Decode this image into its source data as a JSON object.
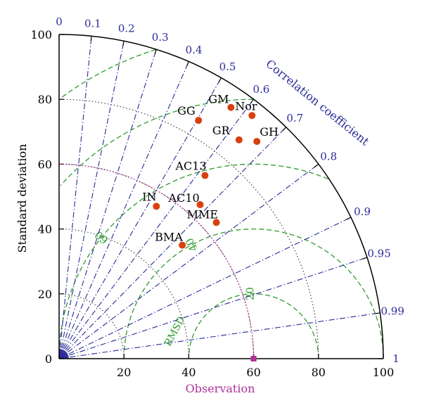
{
  "chart_data": {
    "type": "taylor",
    "xlabel": "Observation",
    "ylabel": "Standard deviation",
    "arc_label": "Correlation coefficient",
    "rmsd_label": "RMSD",
    "std_range": [
      0,
      100
    ],
    "std_ticks": [
      0,
      20,
      40,
      60,
      80,
      100
    ],
    "observation_std": 60,
    "correlation_ticks": [
      {
        "label": "0",
        "value": 0
      },
      {
        "label": "0.1",
        "value": 0.1
      },
      {
        "label": "0.2",
        "value": 0.2
      },
      {
        "label": "0.3",
        "value": 0.3
      },
      {
        "label": "0.4",
        "value": 0.4
      },
      {
        "label": "0.5",
        "value": 0.5
      },
      {
        "label": "0.6",
        "value": 0.6
      },
      {
        "label": "0.7",
        "value": 0.7
      },
      {
        "label": "0.8",
        "value": 0.8
      },
      {
        "label": "0.9",
        "value": 0.9
      },
      {
        "label": "0.95",
        "value": 0.95
      },
      {
        "label": "0.99",
        "value": 0.99
      },
      {
        "label": "1",
        "value": 1
      }
    ],
    "rmsd_contours": [
      20,
      40,
      60,
      80,
      100
    ],
    "std_contours": [
      20,
      40,
      60,
      80
    ],
    "points": [
      {
        "label": "GG",
        "x": 43,
        "y": 73.5
      },
      {
        "label": "GM",
        "x": 53,
        "y": 77.5
      },
      {
        "label": "Nor",
        "x": 59.5,
        "y": 75
      },
      {
        "label": "GR",
        "x": 55.5,
        "y": 67.5
      },
      {
        "label": "GH",
        "x": 61,
        "y": 67
      },
      {
        "label": "AC13",
        "x": 45,
        "y": 56.5
      },
      {
        "label": "IN",
        "x": 30,
        "y": 47
      },
      {
        "label": "AC10",
        "x": 43.5,
        "y": 47.5
      },
      {
        "label": "MME",
        "x": 48.5,
        "y": 42
      },
      {
        "label": "BMA",
        "x": 38,
        "y": 35
      }
    ],
    "colors": {
      "axis": "#000000",
      "correlation": "#2a2a9a",
      "rmsd": "#2e9a2e",
      "observation": "#b0309a",
      "point": "#d94010",
      "std_grid": "#333333"
    }
  }
}
